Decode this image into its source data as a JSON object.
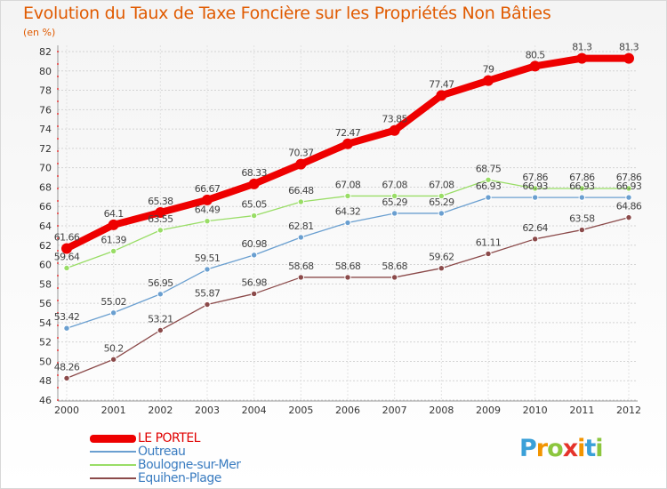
{
  "title": "Evolution du Taux de Taxe Foncière sur les Propriétés Non Bâties",
  "unit_label": "(en %)",
  "logo": {
    "letters": [
      "P",
      "r",
      "o",
      "x",
      "i",
      "t",
      "i"
    ],
    "colors": [
      "#3aa0d8",
      "#f29400",
      "#8cc63e",
      "#e5332a",
      "#f29400",
      "#3aa0d8",
      "#8cc63e"
    ]
  },
  "chart_data": {
    "type": "line",
    "title": "Evolution du Taux de Taxe Foncière sur les Propriétés Non Bâties",
    "ylabel": "(en %)",
    "xlabel": "",
    "ylim": [
      46,
      82
    ],
    "yticks": [
      46,
      48,
      50,
      52,
      54,
      56,
      58,
      60,
      62,
      64,
      66,
      68,
      70,
      72,
      74,
      76,
      78,
      80,
      82
    ],
    "grid": true,
    "x": [
      "2000",
      "2001",
      "2002",
      "2003",
      "2004",
      "2005",
      "2006",
      "2007",
      "2008",
      "2009",
      "2010",
      "2011",
      "2012"
    ],
    "series": [
      {
        "name": "LE PORTEL",
        "color": "#ee0000",
        "values": [
          61.66,
          64.1,
          65.38,
          66.67,
          68.33,
          70.37,
          72.47,
          73.85,
          77.47,
          79,
          80.5,
          81.3,
          81.3
        ],
        "labels": [
          "61.66",
          "64.1",
          "65.38",
          "66.67",
          "68.33",
          "70.37",
          "72.47",
          "73.85",
          "77.47",
          "79",
          "80.5",
          "81.3",
          "81.3"
        ]
      },
      {
        "name": "Outreau",
        "color": "#6a9fd0",
        "values": [
          53.42,
          55.02,
          56.95,
          59.51,
          60.98,
          62.81,
          64.32,
          65.29,
          65.29,
          66.93,
          66.93,
          66.93,
          66.93
        ],
        "labels": [
          "53.42",
          "55.02",
          "56.95",
          "59.51",
          "60.98",
          "62.81",
          "64.32",
          "65.29",
          "65.29",
          "66.93",
          "66.93",
          "66.93",
          "66.93"
        ]
      },
      {
        "name": "Boulogne-sur-Mer",
        "color": "#99dd66",
        "values": [
          59.64,
          61.39,
          63.55,
          64.49,
          65.05,
          66.48,
          67.08,
          67.08,
          67.08,
          68.75,
          67.86,
          67.86,
          67.86
        ],
        "labels": [
          "59.64",
          "61.39",
          "63.55",
          "64.49",
          "65.05",
          "66.48",
          "67.08",
          "67.08",
          "67.08",
          "68.75",
          "67.86",
          "67.86",
          "67.86"
        ]
      },
      {
        "name": "Equihen-Plage",
        "color": "#8b4a4a",
        "values": [
          48.26,
          50.2,
          53.21,
          55.87,
          56.98,
          58.68,
          58.68,
          58.68,
          59.62,
          61.11,
          62.64,
          63.58,
          64.86
        ],
        "labels": [
          "48.26",
          "50.2",
          "53.21",
          "55.87",
          "56.98",
          "58.68",
          "58.68",
          "58.68",
          "59.62",
          "61.11",
          "62.64",
          "63.58",
          "64.86"
        ]
      }
    ],
    "legend": [
      "LE PORTEL",
      "Outreau",
      "Boulogne-sur-Mer",
      "Equihen-Plage"
    ],
    "legend_position": "bottom-left"
  }
}
